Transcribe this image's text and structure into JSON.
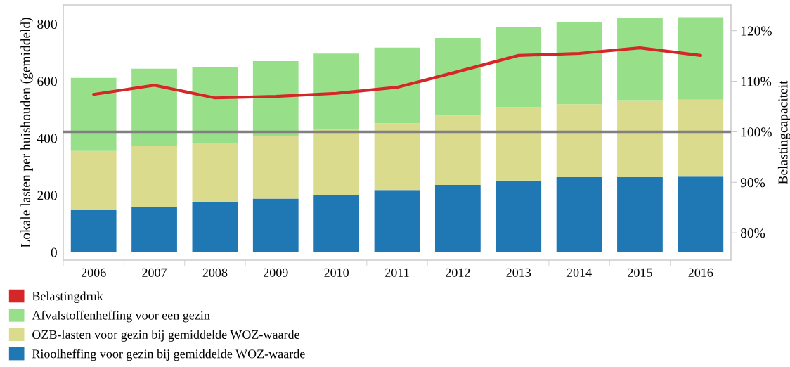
{
  "chart_data": {
    "type": "bar",
    "stacked": true,
    "ylabel": "Lokale lasten per huishouden (gemiddeld)",
    "y2label": "Belastingcapaciteit",
    "categories": [
      "2006",
      "2007",
      "2008",
      "2009",
      "2010",
      "2011",
      "2012",
      "2013",
      "2014",
      "2015",
      "2016"
    ],
    "series": [
      {
        "name": "Rioolheffing voor gezin bij gemiddelde WOZ-waarde",
        "color": "#1f77b4",
        "values": [
          147,
          159,
          176,
          188,
          200,
          218,
          236,
          251,
          263,
          263,
          265
        ]
      },
      {
        "name": "OZB-lasten voor gezin bij gemiddelde WOZ-waarde",
        "color": "#dbdb8d",
        "values": [
          208,
          213,
          205,
          218,
          232,
          234,
          243,
          257,
          256,
          270,
          270
        ]
      },
      {
        "name": "Afvalstoffenheffing voor een gezin",
        "color": "#98df8a",
        "values": [
          256,
          271,
          267,
          264,
          264,
          265,
          272,
          280,
          287,
          289,
          289
        ]
      },
      {
        "name": "Belastingdruk",
        "type": "line",
        "axis": "y2",
        "color": "#d62728",
        "values": [
          107.4,
          109.2,
          106.7,
          107.0,
          107.6,
          108.8,
          111.9,
          115.1,
          115.5,
          116.6,
          115.1
        ]
      }
    ],
    "ylim": [
      -28,
      867
    ],
    "yticks": [
      0,
      200,
      400,
      600,
      800
    ],
    "y2lim": [
      74.6,
      125.1
    ],
    "y2ticks": [
      {
        "value": 80,
        "label": "80%"
      },
      {
        "value": 90,
        "label": "90%"
      },
      {
        "value": 100,
        "label": "100%"
      },
      {
        "value": 110,
        "label": "110%"
      },
      {
        "value": 120,
        "label": "120%"
      }
    ],
    "ref_lines": [
      {
        "axis": "y2",
        "value": 100,
        "color": "#808080"
      }
    ],
    "grid": false,
    "legend": "bottom left",
    "marker": "none",
    "line_style": "solid"
  }
}
